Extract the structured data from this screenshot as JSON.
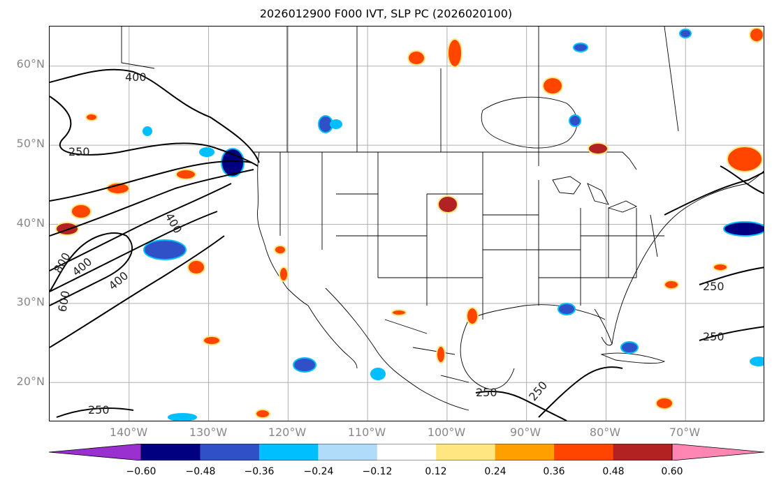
{
  "title": "2026012900 F000 IVT, SLP PC (2026020100)",
  "map": {
    "lat_labels": [
      "60°N",
      "50°N",
      "40°N",
      "30°N",
      "20°N"
    ],
    "lat_values": [
      60,
      50,
      40,
      30,
      20
    ],
    "lon_labels": [
      "140°W",
      "130°W",
      "120°W",
      "110°W",
      "100°W",
      "90°W",
      "80°W",
      "70°W"
    ],
    "lon_values": [
      -140,
      -130,
      -120,
      -110,
      -100,
      -90,
      -80,
      -70
    ],
    "extent": {
      "lon_min": -150,
      "lon_max": -60,
      "lat_min": 15,
      "lat_max": 65
    },
    "grid": true,
    "contour_labels": [
      "400",
      "250",
      "400",
      "800",
      "400",
      "400",
      "600",
      "250",
      "250",
      "250",
      "250",
      "250"
    ]
  },
  "colorbar": {
    "ticks": [
      "−0.60",
      "−0.48",
      "−0.36",
      "−0.24",
      "−0.12",
      "0.12",
      "0.24",
      "0.36",
      "0.48",
      "0.60"
    ],
    "colors": [
      "#9b30d0",
      "#000080",
      "#3050c8",
      "#00bfff",
      "#b0dcfa",
      "#ffffff",
      "#ffe680",
      "#ff9f00",
      "#ff4500",
      "#b22222",
      "#ff85b3"
    ]
  },
  "colors": {
    "neg_strong": "#000080",
    "neg_mid": "#3050c8",
    "neg_light": "#00bfff",
    "pos_light": "#ffe680",
    "pos_mid": "#ff9f00",
    "pos_strong": "#ff4500",
    "pos_dark": "#b22222"
  }
}
